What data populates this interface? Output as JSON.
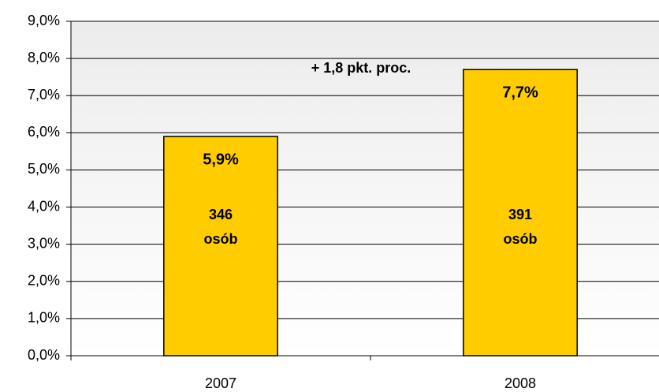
{
  "chart_data": {
    "type": "bar",
    "categories": [
      "2007",
      "2008"
    ],
    "values": [
      5.9,
      7.7
    ],
    "value_labels": [
      "5,9%",
      "7,7%"
    ],
    "bar_notes": [
      [
        "346",
        "osób"
      ],
      [
        "391",
        "osób"
      ]
    ],
    "annotations": [
      "+ 1,8 pkt. proc."
    ],
    "color": "#ffcc00",
    "ylim": [
      0,
      9
    ],
    "yticks": [
      {
        "value": 0,
        "label": "0,0%"
      },
      {
        "value": 1,
        "label": "1,0%"
      },
      {
        "value": 2,
        "label": "2,0%"
      },
      {
        "value": 3,
        "label": "3,0%"
      },
      {
        "value": 4,
        "label": "4,0%"
      },
      {
        "value": 5,
        "label": "5,0%"
      },
      {
        "value": 6,
        "label": "6,0%"
      },
      {
        "value": 7,
        "label": "7,0%"
      },
      {
        "value": 8,
        "label": "8,0%"
      },
      {
        "value": 9,
        "label": "9,0%"
      }
    ],
    "grid": true
  }
}
